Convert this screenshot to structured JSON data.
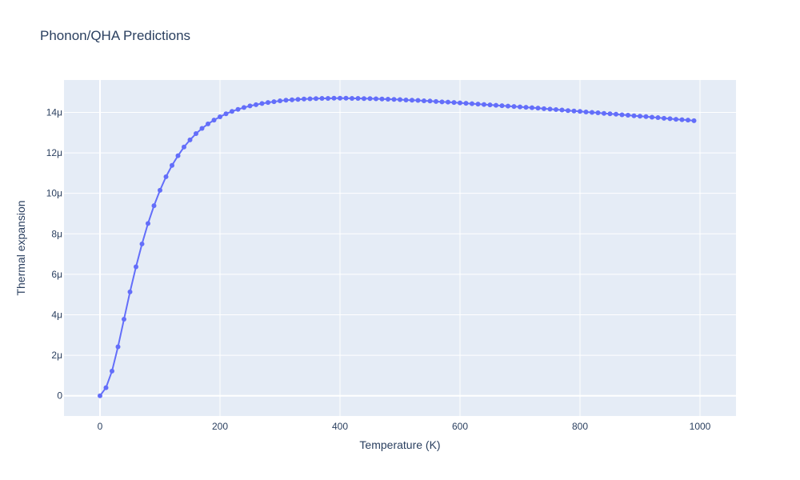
{
  "chart_data": {
    "type": "line",
    "mode": "lines+markers",
    "title": "Phonon/QHA Predictions",
    "xlabel": "Temperature (K)",
    "ylabel": "Thermal expansion",
    "xlim": [
      -60,
      1060
    ],
    "ylim": [
      -1e-06,
      1.56e-05
    ],
    "x_ticks": [
      0,
      200,
      400,
      600,
      800,
      1000
    ],
    "x_tick_labels": [
      "0",
      "200",
      "400",
      "600",
      "800",
      "1000"
    ],
    "y_ticks": [
      0,
      2e-06,
      4e-06,
      6e-06,
      8e-06,
      1e-05,
      1.2e-05,
      1.4e-05
    ],
    "y_tick_labels": [
      "0",
      "2μ",
      "4μ",
      "6μ",
      "8μ",
      "10μ",
      "12μ",
      "14μ"
    ],
    "grid": true,
    "colors": {
      "series": "#636efa",
      "plot_bg": "#e5ecf6",
      "grid": "#ffffff",
      "text": "#2a3f5f"
    },
    "series": [
      {
        "x": [
          0,
          10,
          20,
          30,
          40,
          50,
          60,
          70,
          80,
          90,
          100,
          110,
          120,
          130,
          140,
          150,
          160,
          170,
          180,
          190,
          200,
          210,
          220,
          230,
          240,
          250,
          260,
          270,
          280,
          290,
          300,
          310,
          320,
          330,
          340,
          350,
          360,
          370,
          380,
          390,
          400,
          410,
          420,
          430,
          440,
          450,
          460,
          470,
          480,
          490,
          500,
          510,
          520,
          530,
          540,
          550,
          560,
          570,
          580,
          590,
          600,
          610,
          620,
          630,
          640,
          650,
          660,
          670,
          680,
          690,
          700,
          710,
          720,
          730,
          740,
          750,
          760,
          770,
          780,
          790,
          800,
          810,
          820,
          830,
          840,
          850,
          860,
          870,
          880,
          890,
          900,
          910,
          920,
          930,
          940,
          950,
          960,
          970,
          980,
          990
        ],
        "y": [
          0,
          4e-07,
          1.22e-06,
          2.42e-06,
          3.78e-06,
          5.13e-06,
          6.37e-06,
          7.5e-06,
          8.51e-06,
          9.39e-06,
          1.015e-05,
          1.082e-05,
          1.138e-05,
          1.186e-05,
          1.229e-05,
          1.264e-05,
          1.295e-05,
          1.321e-05,
          1.343e-05,
          1.362e-05,
          1.378e-05,
          1.393e-05,
          1.405e-05,
          1.415e-05,
          1.424e-05,
          1.432e-05,
          1.438e-05,
          1.444e-05,
          1.449e-05,
          1.453e-05,
          1.457e-05,
          1.46e-05,
          1.462e-05,
          1.464e-05,
          1.466e-05,
          1.467e-05,
          1.468e-05,
          1.469e-05,
          1.469e-05,
          1.47e-05,
          1.47e-05,
          1.47e-05,
          1.469e-05,
          1.469e-05,
          1.468e-05,
          1.468e-05,
          1.467e-05,
          1.466e-05,
          1.465e-05,
          1.464e-05,
          1.463e-05,
          1.461e-05,
          1.46e-05,
          1.459e-05,
          1.457e-05,
          1.456e-05,
          1.454e-05,
          1.452e-05,
          1.451e-05,
          1.449e-05,
          1.447e-05,
          1.445e-05,
          1.443e-05,
          1.441e-05,
          1.439e-05,
          1.437e-05,
          1.435e-05,
          1.433e-05,
          1.431e-05,
          1.429e-05,
          1.427e-05,
          1.425e-05,
          1.423e-05,
          1.421e-05,
          1.418e-05,
          1.416e-05,
          1.414e-05,
          1.412e-05,
          1.409e-05,
          1.407e-05,
          1.405e-05,
          1.402e-05,
          1.4e-05,
          1.398e-05,
          1.395e-05,
          1.393e-05,
          1.391e-05,
          1.388e-05,
          1.386e-05,
          1.383e-05,
          1.381e-05,
          1.379e-05,
          1.376e-05,
          1.374e-05,
          1.371e-05,
          1.369e-05,
          1.366e-05,
          1.364e-05,
          1.362e-05,
          1.359e-05
        ]
      }
    ]
  }
}
